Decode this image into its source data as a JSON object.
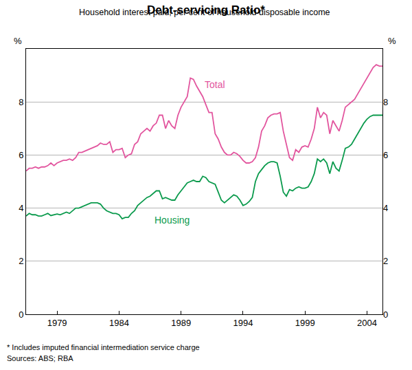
{
  "chart_data": {
    "type": "line",
    "title": "Debt-servicing Ratio*",
    "subtitle": "Household interest paid, per cent of household disposable income",
    "ylabel": "%",
    "annotations": [
      "* Includes imputed financial intermediation service charge",
      "Sources: ABS; RBA"
    ],
    "categories": [
      null,
      null,
      null,
      null,
      null,
      null,
      null,
      null,
      null,
      null,
      "1979",
      null,
      null,
      null,
      null,
      null,
      null,
      null,
      null,
      null,
      null,
      null,
      null,
      null,
      null,
      null,
      null,
      null,
      null,
      null,
      "1984",
      null,
      null,
      null,
      null,
      null,
      null,
      null,
      null,
      null,
      null,
      null,
      null,
      null,
      null,
      null,
      null,
      null,
      null,
      null,
      "1989",
      null,
      null,
      null,
      null,
      null,
      null,
      null,
      null,
      null,
      null,
      null,
      null,
      null,
      null,
      null,
      null,
      null,
      null,
      null,
      "1994",
      null,
      null,
      null,
      null,
      null,
      null,
      null,
      null,
      null,
      null,
      null,
      null,
      null,
      null,
      null,
      null,
      null,
      null,
      null,
      "1999",
      null,
      null,
      null,
      null,
      null,
      null,
      null,
      null,
      null,
      null,
      null,
      null,
      null,
      null,
      null,
      null,
      null,
      null,
      null,
      "2004",
      null,
      null,
      null,
      null,
      null
    ],
    "series": [
      {
        "name": "Total",
        "color": "#e2559e",
        "values": [
          5.4,
          5.5,
          5.5,
          5.55,
          5.5,
          5.55,
          5.55,
          5.6,
          5.7,
          5.6,
          5.7,
          5.75,
          5.8,
          5.8,
          5.85,
          5.8,
          5.9,
          6.1,
          6.1,
          6.15,
          6.2,
          6.25,
          6.3,
          6.35,
          6.45,
          6.4,
          6.4,
          6.5,
          6.1,
          6.2,
          6.2,
          6.25,
          5.9,
          6.0,
          6.05,
          6.4,
          6.5,
          6.8,
          6.9,
          7.0,
          6.9,
          7.1,
          7.2,
          7.5,
          7.5,
          7.0,
          7.3,
          7.1,
          7.0,
          7.5,
          7.8,
          8.0,
          8.2,
          8.9,
          8.85,
          8.6,
          8.4,
          8.2,
          7.9,
          7.6,
          7.6,
          6.8,
          6.6,
          6.3,
          6.1,
          6.0,
          6.0,
          6.1,
          6.05,
          5.95,
          5.8,
          5.7,
          5.7,
          5.75,
          5.9,
          6.3,
          6.9,
          7.1,
          7.4,
          7.5,
          7.55,
          7.55,
          7.6,
          6.9,
          6.4,
          5.9,
          5.8,
          6.2,
          6.1,
          6.3,
          6.35,
          6.3,
          6.6,
          7.0,
          7.8,
          7.4,
          7.6,
          7.5,
          6.8,
          7.3,
          7.1,
          6.9,
          7.3,
          7.8,
          7.9,
          8.0,
          8.1,
          8.3,
          8.5,
          8.7,
          8.9,
          9.1,
          9.3,
          9.4,
          9.35,
          9.35
        ]
      },
      {
        "name": "Housing",
        "color": "#0a9a4c",
        "values": [
          3.7,
          3.8,
          3.75,
          3.75,
          3.7,
          3.7,
          3.75,
          3.8,
          3.72,
          3.75,
          3.78,
          3.75,
          3.8,
          3.85,
          3.8,
          3.9,
          4.0,
          4.0,
          4.05,
          4.1,
          4.15,
          4.2,
          4.2,
          4.2,
          4.15,
          4.0,
          3.9,
          3.85,
          3.8,
          3.8,
          3.75,
          3.6,
          3.65,
          3.65,
          3.8,
          3.9,
          4.1,
          4.2,
          4.3,
          4.4,
          4.45,
          4.55,
          4.65,
          4.65,
          4.35,
          4.4,
          4.35,
          4.3,
          4.3,
          4.5,
          4.65,
          4.8,
          4.95,
          5.0,
          5.05,
          5.0,
          5.0,
          5.2,
          5.15,
          5.0,
          4.95,
          4.9,
          4.6,
          4.3,
          4.2,
          4.3,
          4.4,
          4.5,
          4.45,
          4.3,
          4.1,
          4.15,
          4.25,
          4.4,
          5.0,
          5.3,
          5.45,
          5.6,
          5.7,
          5.75,
          5.75,
          5.7,
          5.2,
          4.6,
          4.45,
          4.7,
          4.65,
          4.75,
          4.8,
          4.75,
          4.75,
          4.8,
          5.0,
          5.3,
          5.85,
          5.75,
          5.85,
          5.7,
          5.3,
          5.75,
          5.5,
          5.4,
          5.8,
          6.25,
          6.3,
          6.4,
          6.6,
          6.8,
          7.0,
          7.2,
          7.35,
          7.45,
          7.5,
          7.5,
          7.5,
          7.5
        ]
      }
    ],
    "ylim": [
      0,
      10
    ],
    "yticks": [
      0,
      2,
      4,
      6,
      8
    ],
    "grid": true
  }
}
